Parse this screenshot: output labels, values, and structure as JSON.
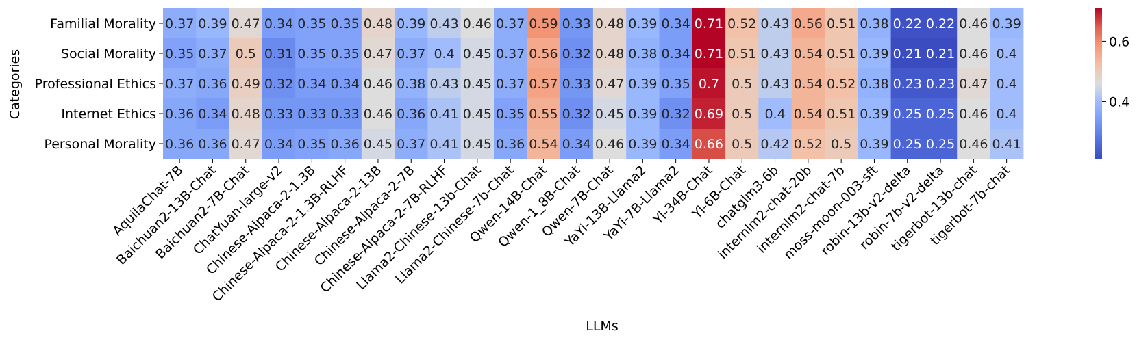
{
  "chart_data": {
    "type": "heatmap",
    "title": "",
    "xlabel": "LLMs",
    "ylabel": "Categories",
    "colormap": "coolwarm",
    "colorbar": {
      "ticks": [
        0.4,
        0.6
      ],
      "range": [
        0.21,
        0.71
      ]
    },
    "rows": [
      "Familial Morality",
      "Social Morality",
      "Professional Ethics",
      "Internet Ethics",
      "Personal Morality"
    ],
    "columns": [
      "AquilaChat-7B",
      "Baichuan2-13B-Chat",
      "Baichuan2-7B-Chat",
      "ChatYuan-large-v2",
      "Chinese-Alpaca-2-1.3B",
      "Chinese-Alpaca-2-1.3B-RLHF",
      "Chinese-Alpaca-2-13B",
      "Chinese-Alpaca-2-7B",
      "Chinese-Alpaca-2-7B-RLHF",
      "Llama2-Chinese-13b-Chat",
      "Llama2-Chinese-7b-Chat",
      "Qwen-14B-Chat",
      "Qwen-1_8B-Chat",
      "Qwen-7B-Chat",
      "YaYi-13B-Llama2",
      "YaYi-7B-Llama2",
      "Yi-34B-Chat",
      "Yi-6B-Chat",
      "chatglm3-6b",
      "internlm2-chat-20b",
      "internlm2-chat-7b",
      "moss-moon-003-sft",
      "robin-13b-v2-delta",
      "robin-7b-v2-delta",
      "tigerbot-13b-chat",
      "tigerbot-7b-chat"
    ],
    "values": [
      [
        0.37,
        0.39,
        0.47,
        0.34,
        0.35,
        0.35,
        0.48,
        0.39,
        0.43,
        0.46,
        0.37,
        0.59,
        0.33,
        0.48,
        0.39,
        0.34,
        0.71,
        0.52,
        0.43,
        0.56,
        0.51,
        0.38,
        0.22,
        0.22,
        0.46,
        0.39
      ],
      [
        0.35,
        0.37,
        0.5,
        0.31,
        0.35,
        0.35,
        0.47,
        0.37,
        0.4,
        0.45,
        0.37,
        0.56,
        0.32,
        0.48,
        0.38,
        0.34,
        0.71,
        0.51,
        0.43,
        0.54,
        0.51,
        0.39,
        0.21,
        0.21,
        0.46,
        0.4
      ],
      [
        0.37,
        0.36,
        0.49,
        0.32,
        0.34,
        0.34,
        0.46,
        0.38,
        0.43,
        0.45,
        0.37,
        0.57,
        0.33,
        0.47,
        0.39,
        0.35,
        0.7,
        0.5,
        0.43,
        0.54,
        0.52,
        0.38,
        0.23,
        0.23,
        0.47,
        0.4
      ],
      [
        0.36,
        0.34,
        0.48,
        0.33,
        0.33,
        0.33,
        0.46,
        0.36,
        0.41,
        0.45,
        0.35,
        0.55,
        0.32,
        0.45,
        0.39,
        0.32,
        0.69,
        0.5,
        0.4,
        0.54,
        0.51,
        0.39,
        0.25,
        0.25,
        0.46,
        0.4
      ],
      [
        0.36,
        0.36,
        0.47,
        0.34,
        0.35,
        0.36,
        0.45,
        0.37,
        0.41,
        0.45,
        0.36,
        0.54,
        0.34,
        0.46,
        0.39,
        0.34,
        0.66,
        0.5,
        0.42,
        0.52,
        0.5,
        0.39,
        0.25,
        0.25,
        0.46,
        0.41
      ]
    ]
  }
}
